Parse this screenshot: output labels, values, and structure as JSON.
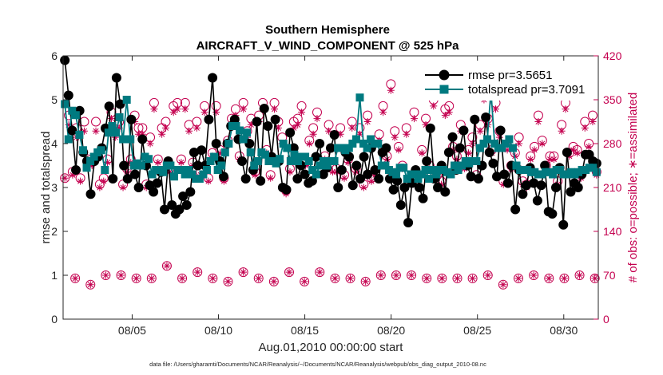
{
  "chart_data": {
    "type": "line",
    "title": "Southern Hemisphere",
    "subtitle": "AIRCRAFT_V_WIND_COMPONENT @ 525 hPa",
    "xlabel": "Aug.01,2010 00:00:00 start",
    "ylabel": "rmse and totalspread",
    "ylabel_right": "# of obs: o=possible; ∗=assimilated",
    "footnote": "data file: /Users/gharamti/Documents/NCAR/Reanalysis/~/Documents/NCAR/Reanalysis/webpub/obs_diag_output_2010-08.nc",
    "xlim": [
      1,
      32
    ],
    "ylim": [
      0,
      6
    ],
    "ylim_right": [
      0,
      420
    ],
    "x_ticks": [
      5,
      10,
      15,
      20,
      25,
      30
    ],
    "x_tick_labels": [
      "08/05",
      "08/10",
      "08/15",
      "08/20",
      "08/25",
      "08/30"
    ],
    "y_ticks": [
      0,
      1,
      2,
      3,
      4,
      5,
      6
    ],
    "y_tick_labels": [
      "0",
      "1",
      "2",
      "3",
      "4",
      "5",
      "6"
    ],
    "y_ticks_right": [
      0,
      70,
      140,
      210,
      280,
      350,
      420
    ],
    "y_tick_labels_right": [
      "0",
      "70",
      "140",
      "210",
      "280",
      "350",
      "420"
    ],
    "legend_position": "top-right",
    "colors": {
      "rmse": "#000000",
      "spread": "#007a80",
      "obs": "#c4004f",
      "axis": "#262626"
    },
    "series": [
      {
        "name": "rmse pr=3.5651",
        "key": "rmse",
        "values": [
          5.9,
          5.1,
          4.3,
          3.4,
          4.75,
          3.8,
          3.6,
          2.85,
          3.6,
          3.7,
          3.9,
          4.35,
          4.85,
          3.2,
          5.5,
          4.9,
          3.5,
          3.2,
          4.55,
          3.3,
          3.0,
          4.1,
          3.5,
          3.05,
          2.9,
          3.1,
          3.35,
          2.5,
          3.6,
          2.6,
          2.4,
          2.5,
          2.8,
          2.6,
          2.9,
          3.8,
          3.5,
          3.85,
          3.5,
          4.55,
          5.5,
          4.0,
          3.6,
          3.25,
          4.0,
          4.4,
          4.55,
          4.1,
          3.6,
          3.2,
          4.0,
          3.4,
          4.5,
          3.15,
          4.8,
          4.4,
          3.7,
          4.55,
          3.6,
          3.0,
          2.95,
          4.25,
          3.9,
          3.2,
          3.5,
          3.3,
          3.1,
          3.15,
          3.7,
          4.0,
          3.3,
          3.45,
          3.9,
          4.2,
          3.0,
          3.4,
          3.8,
          3.7,
          3.05,
          3.5,
          3.2,
          3.7,
          3.3,
          3.9,
          3.4,
          3.2,
          3.8,
          3.9,
          3.2,
          2.95,
          3.15,
          2.6,
          3.0,
          2.2,
          3.1,
          3.4,
          3.0,
          2.75,
          3.6,
          4.35,
          3.2,
          3.0,
          3.5,
          2.9,
          3.8,
          4.15,
          3.4,
          3.9,
          4.3,
          3.5,
          3.25,
          4.55,
          3.2,
          3.5,
          4.6,
          3.8,
          3.55,
          3.25,
          4.3,
          3.3,
          3.1,
          3.5,
          2.5,
          3.4,
          2.85,
          3.05,
          3.45,
          3.1,
          2.7,
          3.05,
          3.5,
          2.45,
          2.4,
          3.0,
          3.45,
          2.15,
          3.8,
          2.9,
          3.1,
          3.0,
          3.3,
          3.75,
          3.75,
          3.6,
          3.55
        ]
      },
      {
        "name": "totalspread pr=3.7091",
        "key": "spread",
        "values": [
          4.9,
          4.1,
          4.75,
          4.65,
          4.2,
          3.85,
          3.45,
          3.6,
          3.7,
          3.8,
          3.85,
          3.4,
          4.25,
          4.4,
          4.25,
          4.6,
          4.1,
          5.0,
          4.1,
          3.5,
          3.55,
          3.5,
          3.7,
          3.65,
          3.3,
          3.4,
          3.4,
          3.35,
          3.5,
          3.5,
          3.25,
          3.4,
          3.4,
          3.3,
          3.4,
          3.3,
          3.2,
          3.2,
          3.3,
          3.4,
          3.6,
          3.7,
          3.4,
          3.5,
          3.8,
          4.0,
          4.4,
          4.4,
          4.3,
          4.1,
          4.25,
          3.8,
          3.5,
          3.6,
          3.8,
          3.75,
          3.6,
          3.6,
          3.55,
          3.65,
          4.0,
          3.9,
          3.6,
          3.75,
          3.6,
          3.7,
          3.7,
          3.6,
          3.4,
          3.3,
          3.5,
          3.6,
          3.5,
          3.6,
          3.6,
          3.9,
          3.9,
          3.85,
          3.9,
          4.0,
          4.1,
          5.05,
          4.0,
          3.9,
          4.1,
          4.0,
          4.0,
          3.5,
          3.5,
          3.4,
          3.35,
          3.3,
          3.45,
          3.45,
          3.2,
          3.3,
          3.3,
          3.2,
          3.3,
          3.4,
          3.2,
          3.4,
          3.3,
          3.4,
          3.4,
          3.35,
          3.3,
          3.5,
          3.4,
          3.5,
          3.6,
          3.55,
          3.6,
          3.6,
          3.9,
          4.0,
          4.1,
          5.2,
          4.0,
          3.9,
          3.9,
          4.0,
          4.1,
          3.9,
          3.5,
          3.4,
          3.4,
          3.4,
          3.35,
          3.35,
          3.3,
          3.3,
          3.35,
          3.35,
          3.3,
          3.4,
          3.4,
          3.3,
          3.3,
          3.35,
          3.3,
          3.35,
          3.4,
          3.4,
          3.45,
          3.45,
          3.35
        ]
      },
      {
        "name": "possible",
        "key": "possible",
        "values": [
          225,
          325,
          235,
          305,
          225,
          315,
          255,
          250,
          315,
          215,
          225,
          255,
          330,
          300,
          315,
          215,
          240,
          255,
          325,
          305,
          305,
          215,
          290,
          345,
          255,
          305,
          315,
          240,
          340,
          345,
          255,
          345,
          310,
          250,
          315,
          235,
          340,
          225,
          265,
          340,
          270,
          225,
          285,
          320,
          335,
          260,
          345,
          300,
          320,
          235,
          325,
          345,
          270,
          230,
          345,
          315,
          290,
          205,
          240,
          315,
          320,
          340,
          250,
          285,
          305,
          330,
          250,
          260,
          310,
          240,
          240,
          305,
          230,
          255,
          315,
          240,
          305,
          215,
          325,
          225,
          235,
          295,
          340,
          260,
          375,
          300,
          275,
          245,
          305,
          225,
          330,
          230,
          270,
          320,
          245,
          350,
          230,
          220,
          335,
          340,
          275,
          260,
          310,
          245,
          270,
          290,
          230,
          310,
          360,
          320,
          270,
          345,
          300,
          220,
          275,
          245,
          265,
          290,
          220,
          215,
          260,
          275,
          325,
          285,
          245,
          260,
          260,
          220,
          310,
          345,
          265,
          275,
          270,
          230,
          315,
          280,
          325,
          235
        ],
        "low_values": [
          65,
          55,
          70,
          70,
          65,
          65,
          85,
          65,
          75,
          65,
          60,
          75,
          65,
          60,
          75,
          60,
          75,
          65,
          65,
          60,
          70,
          70,
          70,
          65,
          65,
          65,
          65,
          70,
          55,
          65,
          70,
          65,
          65,
          70,
          65
        ]
      },
      {
        "name": "assimilated",
        "key": "assimilated",
        "values": [
          225,
          310,
          230,
          290,
          220,
          300,
          250,
          245,
          300,
          210,
          220,
          250,
          320,
          290,
          305,
          210,
          235,
          250,
          315,
          295,
          295,
          210,
          280,
          335,
          250,
          295,
          305,
          235,
          330,
          335,
          250,
          335,
          300,
          245,
          305,
          230,
          330,
          220,
          260,
          330,
          265,
          220,
          280,
          310,
          325,
          255,
          335,
          290,
          310,
          230,
          315,
          335,
          265,
          225,
          335,
          305,
          280,
          200,
          235,
          305,
          310,
          330,
          245,
          280,
          295,
          320,
          245,
          255,
          300,
          235,
          235,
          295,
          225,
          250,
          305,
          235,
          295,
          210,
          315,
          220,
          230,
          285,
          330,
          255,
          365,
          290,
          270,
          240,
          295,
          220,
          320,
          225,
          265,
          310,
          240,
          340,
          225,
          215,
          325,
          330,
          270,
          255,
          300,
          240,
          265,
          280,
          225,
          300,
          350,
          310,
          265,
          335,
          290,
          215,
          270,
          240,
          260,
          280,
          215,
          210,
          255,
          270,
          315,
          280,
          240,
          255,
          255,
          215,
          300,
          335,
          260,
          270,
          265,
          225,
          305,
          275,
          315,
          230
        ],
        "low_values": [
          65,
          55,
          70,
          70,
          65,
          65,
          85,
          65,
          75,
          65,
          60,
          75,
          65,
          60,
          75,
          60,
          75,
          65,
          65,
          60,
          70,
          70,
          70,
          65,
          65,
          65,
          65,
          70,
          55,
          65,
          70,
          65,
          65,
          70,
          65
        ]
      }
    ]
  }
}
